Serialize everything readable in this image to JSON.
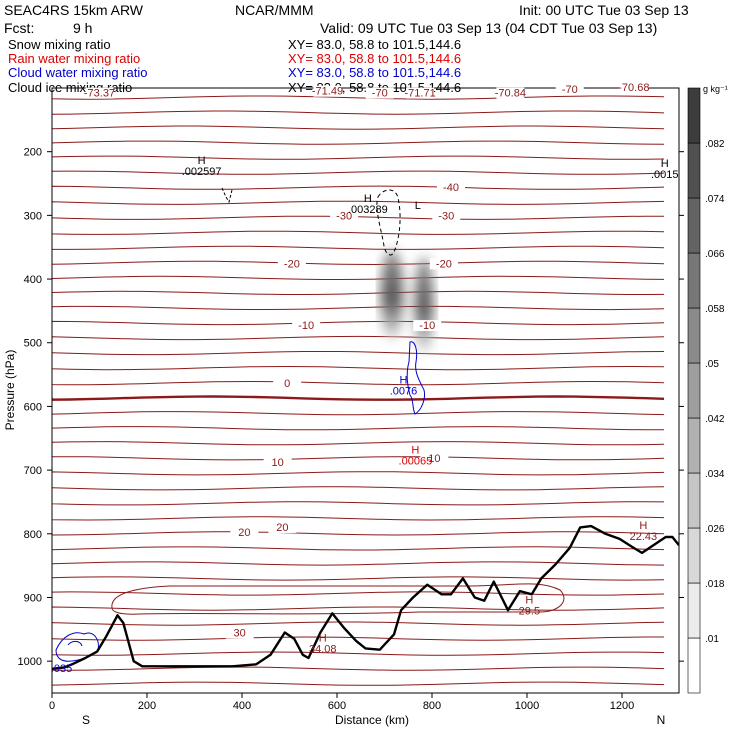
{
  "header": {
    "model": "SEAC4RS 15km ARW",
    "org": "NCAR/MMM",
    "init": "Init: 00 UTC Tue 03 Sep 13",
    "fcst_label": "Fcst:",
    "fcst_value": "9 h",
    "valid": "Valid: 09 UTC Tue 03 Sep 13 (04 CDT Tue 03 Sep 13)"
  },
  "fields": [
    {
      "label": "Snow mixing ratio",
      "xy": "XY=  83.0, 58.8 to 101.5,144.6",
      "color": "#000000"
    },
    {
      "label": "Rain water mixing ratio",
      "xy": "XY=  83.0, 58.8 to 101.5,144.6",
      "color": "#dd0000"
    },
    {
      "label": "Cloud water mixing ratio",
      "xy": "XY=  83.0, 58.8 to 101.5,144.6",
      "color": "#0000cc"
    },
    {
      "label": "Cloud ice mixing ratio",
      "xy": "XY=  83.0, 58.8 to 101.5,144.6",
      "color": "#000000"
    }
  ],
  "chart_data": {
    "type": "cross-section",
    "xlabel": "Distance (km)",
    "ylabel": "Pressure (hPa)",
    "xlim": [
      0,
      1320
    ],
    "ylim": [
      1050,
      100
    ],
    "x_ticks": [
      0,
      200,
      400,
      600,
      800,
      1000,
      1200
    ],
    "y_ticks": [
      200,
      300,
      400,
      500,
      600,
      700,
      800,
      900,
      1000
    ],
    "y_tick_labels": [
      "200",
      "300",
      "400",
      "500",
      "600",
      "700",
      "800",
      "900",
      "1000"
    ],
    "end_labels": {
      "left": "S",
      "right": "N"
    },
    "colorbar": {
      "unit": "g kg⁻¹",
      "levels": [
        0.01,
        0.018,
        0.026,
        0.034,
        0.042,
        0.05,
        0.058,
        0.066,
        0.074,
        0.082
      ],
      "labels": [
        ".01",
        ".018",
        ".026",
        ".034",
        ".042",
        ".05",
        ".058",
        ".066",
        ".074",
        ".082"
      ]
    },
    "isotherm_color": "#8b1a1a",
    "isotherm_labels": [
      {
        "text": "-73.37",
        "x": 100,
        "p": 112
      },
      {
        "text": "-71.49",
        "x": 580,
        "p": 109
      },
      {
        "text": "-70",
        "x": 690,
        "p": 112
      },
      {
        "text": "-71.71",
        "x": 775,
        "p": 112
      },
      {
        "text": "-70.84",
        "x": 965,
        "p": 112
      },
      {
        "text": "-70",
        "x": 1090,
        "p": 106
      },
      {
        "text": "-70.68",
        "x": 1225,
        "p": 103
      },
      {
        "text": "-40",
        "x": 840,
        "p": 260
      },
      {
        "text": "-30",
        "x": 615,
        "p": 305
      },
      {
        "text": "-30",
        "x": 830,
        "p": 305
      },
      {
        "text": "-20",
        "x": 505,
        "p": 380
      },
      {
        "text": "-20",
        "x": 825,
        "p": 380
      },
      {
        "text": "-10",
        "x": 535,
        "p": 477
      },
      {
        "text": "-10",
        "x": 790,
        "p": 477
      },
      {
        "text": "0",
        "x": 495,
        "p": 568
      },
      {
        "text": "10",
        "x": 475,
        "p": 692
      },
      {
        "text": "10",
        "x": 805,
        "p": 686
      },
      {
        "text": "20",
        "x": 405,
        "p": 802
      },
      {
        "text": "20",
        "x": 485,
        "p": 794
      },
      {
        "text": "30",
        "x": 395,
        "p": 960
      }
    ],
    "extrema_labels": [
      {
        "h": "H",
        "value": ".002597",
        "x": 315,
        "p": 235,
        "color": "#000000"
      },
      {
        "h": "H",
        "value": ".003289",
        "x": 665,
        "p": 295,
        "color": "#000000"
      },
      {
        "h": "H",
        "value": ".0015",
        "x": 1290,
        "p": 240,
        "color": "#000000"
      },
      {
        "h": "H",
        "value": ".0076",
        "x": 740,
        "p": 580,
        "color": "#0000cc"
      },
      {
        "h": "H",
        "value": ".00065",
        "x": 765,
        "p": 690,
        "color": "#dd0000"
      },
      {
        "h": "H",
        "value": "34.08",
        "x": 570,
        "p": 985,
        "color": "#8b1a1a"
      },
      {
        "h": "H",
        "value": "29.5",
        "x": 1005,
        "p": 925,
        "color": "#8b1a1a"
      },
      {
        "h": "H",
        "value": "22.43",
        "x": 1245,
        "p": 808,
        "color": "#8b1a1a"
      }
    ],
    "extra_labels": [
      {
        "text": "L",
        "x": 770,
        "p": 290,
        "color": "#000000"
      },
      {
        "text": ".035",
        "x": 20,
        "p": 1017,
        "color": "#0000cc"
      }
    ],
    "terrain": [
      [
        0,
        1012
      ],
      [
        25,
        1010
      ],
      [
        45,
        1004
      ],
      [
        70,
        995
      ],
      [
        95,
        985
      ],
      [
        115,
        960
      ],
      [
        138,
        928
      ],
      [
        150,
        940
      ],
      [
        172,
        1000
      ],
      [
        190,
        1008
      ],
      [
        380,
        1008
      ],
      [
        430,
        1005
      ],
      [
        460,
        990
      ],
      [
        490,
        955
      ],
      [
        510,
        965
      ],
      [
        528,
        990
      ],
      [
        540,
        995
      ],
      [
        565,
        955
      ],
      [
        590,
        925
      ],
      [
        615,
        948
      ],
      [
        640,
        968
      ],
      [
        660,
        980
      ],
      [
        690,
        982
      ],
      [
        720,
        958
      ],
      [
        735,
        920
      ],
      [
        760,
        900
      ],
      [
        790,
        880
      ],
      [
        820,
        895
      ],
      [
        840,
        895
      ],
      [
        865,
        870
      ],
      [
        890,
        900
      ],
      [
        910,
        905
      ],
      [
        930,
        875
      ],
      [
        960,
        920
      ],
      [
        985,
        890
      ],
      [
        1010,
        895
      ],
      [
        1030,
        870
      ],
      [
        1060,
        848
      ],
      [
        1090,
        822
      ],
      [
        1112,
        790
      ],
      [
        1135,
        788
      ],
      [
        1165,
        800
      ],
      [
        1195,
        808
      ],
      [
        1220,
        820
      ],
      [
        1242,
        830
      ],
      [
        1262,
        820
      ],
      [
        1292,
        805
      ],
      [
        1306,
        805
      ],
      [
        1320,
        818
      ]
    ]
  }
}
